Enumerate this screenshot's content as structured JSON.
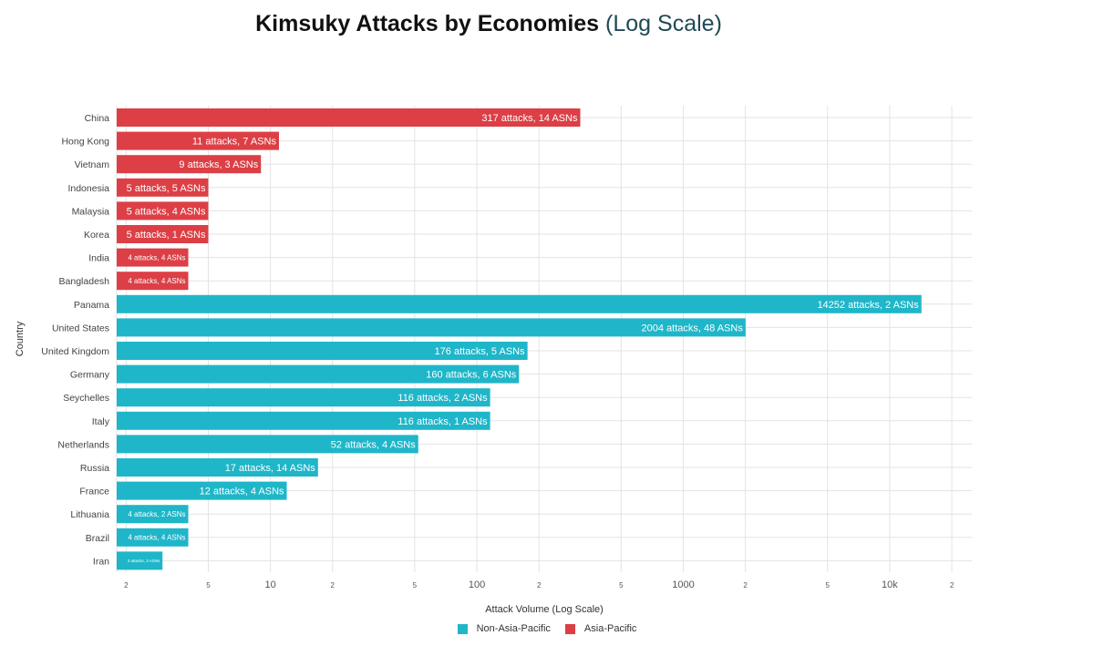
{
  "chart_data": {
    "type": "bar",
    "orientation": "horizontal",
    "title": "Kimsuky Attacks by Economies",
    "subtitle": "(Log Scale)",
    "xlabel": "Attack Volume (Log Scale)",
    "ylabel": "Country",
    "x_scale": "log",
    "xlim": [
      1.8,
      25000
    ],
    "x_ticks": [
      {
        "value": 2,
        "label": "2"
      },
      {
        "value": 5,
        "label": "5"
      },
      {
        "value": 10,
        "label": "10"
      },
      {
        "value": 20,
        "label": "2"
      },
      {
        "value": 50,
        "label": "5"
      },
      {
        "value": 100,
        "label": "100"
      },
      {
        "value": 200,
        "label": "2"
      },
      {
        "value": 500,
        "label": "5"
      },
      {
        "value": 1000,
        "label": "1000"
      },
      {
        "value": 2000,
        "label": "2"
      },
      {
        "value": 5000,
        "label": "5"
      },
      {
        "value": 10000,
        "label": "10k"
      },
      {
        "value": 20000,
        "label": "2"
      }
    ],
    "grid": true,
    "legend_position": "bottom",
    "legend": [
      {
        "name": "Non-Asia-Pacific",
        "color": "#1fb6c9"
      },
      {
        "name": "Asia-Pacific",
        "color": "#dc3f45"
      }
    ],
    "bars": [
      {
        "category": "China",
        "value": 317,
        "label": "317 attacks, 14 ASNs",
        "group": "Asia-Pacific"
      },
      {
        "category": "Hong Kong",
        "value": 11,
        "label": "11 attacks, 7 ASNs",
        "group": "Asia-Pacific"
      },
      {
        "category": "Vietnam",
        "value": 9,
        "label": "9 attacks, 3 ASNs",
        "group": "Asia-Pacific"
      },
      {
        "category": "Indonesia",
        "value": 5,
        "label": "5 attacks, 5 ASNs",
        "group": "Asia-Pacific"
      },
      {
        "category": "Malaysia",
        "value": 5,
        "label": "5 attacks, 4 ASNs",
        "group": "Asia-Pacific"
      },
      {
        "category": "Korea",
        "value": 5,
        "label": "5 attacks, 1 ASNs",
        "group": "Asia-Pacific"
      },
      {
        "category": "India",
        "value": 4,
        "label": "4 attacks, 4 ASNs",
        "group": "Asia-Pacific"
      },
      {
        "category": "Bangladesh",
        "value": 4,
        "label": "4 attacks, 4 ASNs",
        "group": "Asia-Pacific"
      },
      {
        "category": "Panama",
        "value": 14252,
        "label": "14252 attacks, 2 ASNs",
        "group": "Non-Asia-Pacific"
      },
      {
        "category": "United States",
        "value": 2004,
        "label": "2004 attacks, 48 ASNs",
        "group": "Non-Asia-Pacific"
      },
      {
        "category": "United Kingdom",
        "value": 176,
        "label": "176 attacks, 5 ASNs",
        "group": "Non-Asia-Pacific"
      },
      {
        "category": "Germany",
        "value": 160,
        "label": "160 attacks, 6 ASNs",
        "group": "Non-Asia-Pacific"
      },
      {
        "category": "Seychelles",
        "value": 116,
        "label": "116 attacks, 2 ASNs",
        "group": "Non-Asia-Pacific"
      },
      {
        "category": "Italy",
        "value": 116,
        "label": "116 attacks, 1 ASNs",
        "group": "Non-Asia-Pacific"
      },
      {
        "category": "Netherlands",
        "value": 52,
        "label": "52 attacks, 4 ASNs",
        "group": "Non-Asia-Pacific"
      },
      {
        "category": "Russia",
        "value": 17,
        "label": "17 attacks, 14 ASNs",
        "group": "Non-Asia-Pacific"
      },
      {
        "category": "France",
        "value": 12,
        "label": "12 attacks, 4 ASNs",
        "group": "Non-Asia-Pacific"
      },
      {
        "category": "Lithuania",
        "value": 4,
        "label": "4 attacks, 2 ASNs",
        "group": "Non-Asia-Pacific"
      },
      {
        "category": "Brazil",
        "value": 4,
        "label": "4 attacks, 4 ASNs",
        "group": "Non-Asia-Pacific"
      },
      {
        "category": "Iran",
        "value": 3,
        "label": "3 attacks, 3 ASNs",
        "group": "Non-Asia-Pacific"
      }
    ]
  }
}
